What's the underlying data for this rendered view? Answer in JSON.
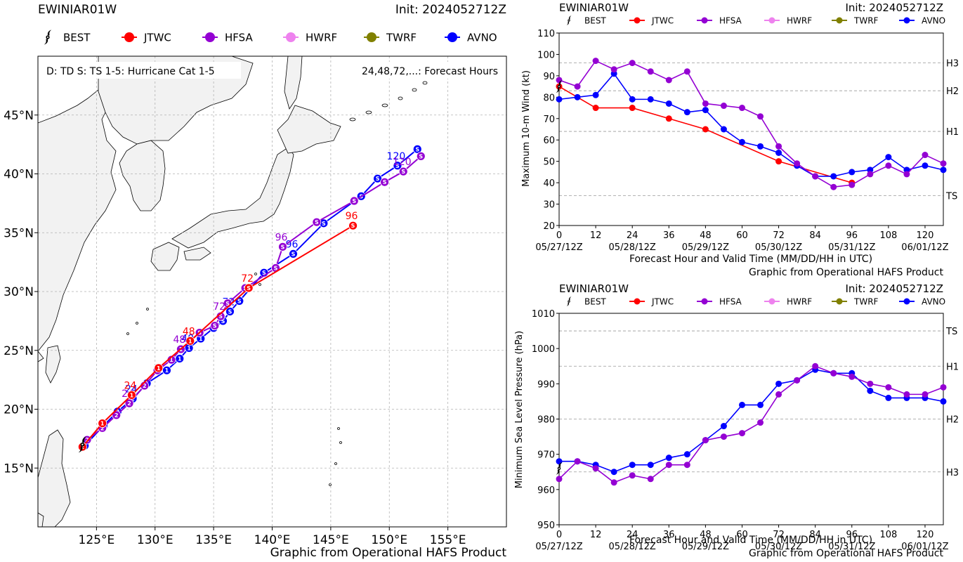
{
  "colors": {
    "BEST": "#000000",
    "JTWC": "#ff0000",
    "HFSA": "#9400d3",
    "HWRF": "#ee82ee",
    "TWRF": "#808000",
    "AVNO": "#0000ff",
    "land": "#f2f2f2",
    "grid": "#b3b3b3"
  },
  "legend": [
    "BEST",
    "JTWC",
    "HFSA",
    "HWRF",
    "TWRF",
    "AVNO"
  ],
  "credit": "Graphic from Operational HAFS Product",
  "chart_data": [
    {
      "type": "scatter",
      "id": "track",
      "title": "EWINIAR01W",
      "init": "Init: 2024052712Z",
      "note_left": "D: TD  S: TS  1-5: Hurricane Cat 1-5",
      "note_right": "24,48,72,...: Forecast Hours",
      "xlim": [
        120,
        160
      ],
      "ylim": [
        10,
        50
      ],
      "xticks": [
        125,
        130,
        135,
        140,
        145,
        150,
        155
      ],
      "xtick_labels": [
        "125°E",
        "130°E",
        "135°E",
        "140°E",
        "145°E",
        "150°E",
        "155°E"
      ],
      "yticks": [
        15,
        20,
        25,
        30,
        35,
        40,
        45
      ],
      "ytick_labels": [
        "15°N",
        "20°N",
        "25°N",
        "30°N",
        "35°N",
        "40°N",
        "45°N"
      ],
      "series": [
        {
          "name": "BEST",
          "points": [
            [
              123.8,
              17.0,
              "2"
            ]
          ]
        },
        {
          "name": "JTWC",
          "points": [
            [
              123.8,
              16.8,
              "2"
            ],
            [
              125.5,
              18.8,
              "1"
            ],
            [
              128.0,
              21.2,
              "1"
            ],
            [
              130.3,
              23.5,
              "1"
            ],
            [
              133.0,
              25.8,
              "1"
            ],
            [
              138.0,
              30.3,
              "S"
            ],
            [
              146.9,
              35.6,
              "S"
            ]
          ],
          "labels": [
            [
              128.0,
              21.2,
              "24"
            ],
            [
              133.0,
              25.8,
              "48"
            ],
            [
              138.0,
              30.3,
              "72"
            ],
            [
              146.9,
              35.6,
              "96"
            ]
          ]
        },
        {
          "name": "HFSA",
          "points": [
            [
              124.2,
              17.4,
              "2"
            ],
            [
              125.5,
              18.4,
              "2"
            ],
            [
              126.7,
              19.5,
              "2"
            ],
            [
              127.8,
              20.5,
              "2"
            ],
            [
              129.1,
              22.0,
              "2"
            ],
            [
              130.2,
              23.3,
              "1"
            ],
            [
              131.4,
              24.2,
              "1"
            ],
            [
              132.2,
              25.1,
              "1"
            ],
            [
              133.8,
              26.5,
              "S"
            ],
            [
              135.1,
              27.1,
              "S"
            ],
            [
              135.6,
              27.9,
              "S"
            ],
            [
              136.2,
              29.0,
              "S"
            ],
            [
              137.7,
              30.3,
              "S"
            ],
            [
              140.3,
              32.0,
              "S"
            ],
            [
              140.9,
              33.8,
              "S"
            ],
            [
              143.8,
              35.9,
              "S"
            ],
            [
              147.0,
              37.7,
              "S"
            ],
            [
              149.6,
              39.3,
              "S"
            ],
            [
              151.2,
              40.2,
              "S"
            ],
            [
              152.7,
              41.5,
              "S"
            ]
          ],
          "labels": [
            [
              127.8,
              20.5,
              "24"
            ],
            [
              132.2,
              25.1,
              "48"
            ],
            [
              135.6,
              27.9,
              "72"
            ],
            [
              140.9,
              33.8,
              "96"
            ],
            [
              151.2,
              40.2,
              "120"
            ]
          ]
        },
        {
          "name": "AVNO",
          "points": [
            [
              124.0,
              16.9,
              "2"
            ],
            [
              125.6,
              18.6,
              "2"
            ],
            [
              126.8,
              19.8,
              "2"
            ],
            [
              128.1,
              20.9,
              "2"
            ],
            [
              129.3,
              22.2,
              "2"
            ],
            [
              131.0,
              23.3,
              "1"
            ],
            [
              132.1,
              24.3,
              "1"
            ],
            [
              132.9,
              25.2,
              "1"
            ],
            [
              133.9,
              26.0,
              "1"
            ],
            [
              135.0,
              26.9,
              "S"
            ],
            [
              135.8,
              27.5,
              "S"
            ],
            [
              136.4,
              28.3,
              "S"
            ],
            [
              137.2,
              29.2,
              "S"
            ],
            [
              139.3,
              31.6,
              "S"
            ],
            [
              141.8,
              33.2,
              "S"
            ],
            [
              144.4,
              35.8,
              "S"
            ],
            [
              147.6,
              38.1,
              "S"
            ],
            [
              149.0,
              39.6,
              "S"
            ],
            [
              150.7,
              40.7,
              "S"
            ],
            [
              152.4,
              42.1,
              "S"
            ]
          ],
          "labels": [
            [
              128.1,
              20.9,
              "24"
            ],
            [
              132.9,
              25.2,
              "48"
            ],
            [
              136.4,
              28.3,
              "72"
            ],
            [
              141.8,
              33.2,
              "96"
            ],
            [
              150.7,
              40.7,
              "120"
            ]
          ]
        }
      ]
    },
    {
      "type": "line",
      "id": "wind",
      "title": "EWINIAR01W",
      "init": "Init: 2024052712Z",
      "ylabel": "Maximum 10-m Wind (kt)",
      "xlabel": "Forecast Hour and Valid Time (MM/DD/HH in UTC)",
      "xlim": [
        0,
        126
      ],
      "ylim": [
        20,
        110
      ],
      "xticks": [
        0,
        12,
        24,
        36,
        48,
        60,
        72,
        84,
        96,
        108,
        120
      ],
      "yticks": [
        20,
        30,
        40,
        50,
        60,
        70,
        80,
        90,
        100,
        110
      ],
      "date_ticks": [
        [
          0,
          "05/27/12Z"
        ],
        [
          24,
          "05/28/12Z"
        ],
        [
          48,
          "05/29/12Z"
        ],
        [
          72,
          "05/30/12Z"
        ],
        [
          96,
          "05/31/12Z"
        ],
        [
          120,
          "06/01/12Z"
        ]
      ],
      "thresholds": [
        [
          34,
          "TS"
        ],
        [
          64,
          "H1"
        ],
        [
          83,
          "H2"
        ],
        [
          96,
          "H3"
        ]
      ],
      "best": [
        0,
        85
      ],
      "series": [
        {
          "name": "JTWC",
          "x": [
            0,
            12,
            24,
            36,
            48,
            72,
            96
          ],
          "y": [
            85,
            75,
            75,
            70,
            65,
            50,
            40
          ]
        },
        {
          "name": "HFSA",
          "x": [
            0,
            6,
            12,
            18,
            24,
            30,
            36,
            42,
            48,
            54,
            60,
            66,
            72,
            78,
            84,
            90,
            96,
            102,
            108,
            114,
            120,
            126
          ],
          "y": [
            88,
            85,
            97,
            93,
            96,
            92,
            88,
            92,
            77,
            76,
            75,
            71,
            57,
            49,
            43,
            38,
            39,
            44,
            48,
            44,
            53,
            49
          ]
        },
        {
          "name": "AVNO",
          "x": [
            0,
            6,
            12,
            18,
            24,
            30,
            36,
            42,
            48,
            54,
            60,
            66,
            72,
            78,
            84,
            90,
            96,
            102,
            108,
            114,
            120,
            126
          ],
          "y": [
            79,
            80,
            81,
            91,
            79,
            79,
            77,
            73,
            74,
            65,
            59,
            57,
            54,
            48,
            43,
            43,
            45,
            46,
            52,
            46,
            48,
            46
          ]
        }
      ]
    },
    {
      "type": "line",
      "id": "pres",
      "title": "EWINIAR01W",
      "init": "Init: 2024052712Z",
      "ylabel": "Minimum Sea Level Pressure (hPa)",
      "xlabel": "Forecast Hour and Valid Time (MM/DD/HH in UTC)",
      "xlim": [
        0,
        126
      ],
      "ylim": [
        950,
        1010
      ],
      "xticks": [
        0,
        12,
        24,
        36,
        48,
        60,
        72,
        84,
        96,
        108,
        120
      ],
      "yticks": [
        950,
        960,
        970,
        980,
        990,
        1000,
        1010
      ],
      "date_ticks": [
        [
          0,
          "05/27/12Z"
        ],
        [
          24,
          "05/28/12Z"
        ],
        [
          48,
          "05/29/12Z"
        ],
        [
          72,
          "05/30/12Z"
        ],
        [
          96,
          "05/31/12Z"
        ],
        [
          120,
          "06/01/12Z"
        ]
      ],
      "thresholds": [
        [
          1005,
          "TS"
        ],
        [
          995,
          "H1"
        ],
        [
          980,
          "H2"
        ],
        [
          965,
          "H3"
        ]
      ],
      "best": [
        0,
        966
      ],
      "series": [
        {
          "name": "HFSA",
          "x": [
            0,
            6,
            12,
            18,
            24,
            30,
            36,
            42,
            48,
            54,
            60,
            66,
            72,
            78,
            84,
            90,
            96,
            102,
            108,
            114,
            120,
            126
          ],
          "y": [
            963,
            968,
            966,
            962,
            964,
            963,
            967,
            967,
            974,
            975,
            976,
            979,
            987,
            991,
            995,
            993,
            992,
            990,
            989,
            987,
            987,
            989
          ]
        },
        {
          "name": "AVNO",
          "x": [
            0,
            6,
            12,
            18,
            24,
            30,
            36,
            42,
            48,
            54,
            60,
            66,
            72,
            78,
            84,
            90,
            96,
            102,
            108,
            114,
            120,
            126
          ],
          "y": [
            968,
            968,
            967,
            965,
            967,
            967,
            969,
            970,
            974,
            978,
            984,
            984,
            990,
            991,
            994,
            993,
            993,
            988,
            986,
            986,
            986,
            985
          ]
        }
      ]
    }
  ]
}
